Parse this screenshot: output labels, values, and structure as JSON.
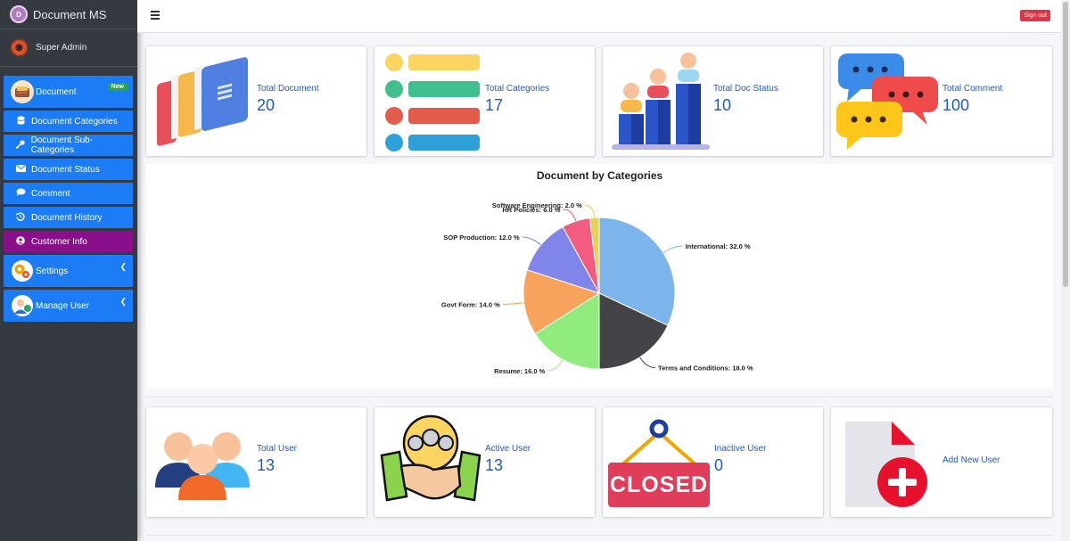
{
  "brand": {
    "title": "Document MS"
  },
  "user": {
    "name": "Super Admin"
  },
  "sidebar": {
    "items": [
      {
        "label": "Document",
        "badge": "New"
      },
      {
        "label": "Document Categories"
      },
      {
        "label": "Document Sub-Categories"
      },
      {
        "label": "Document Status"
      },
      {
        "label": "Comment"
      },
      {
        "label": "Document History"
      },
      {
        "label": "Customer Info"
      },
      {
        "label": "Settings"
      },
      {
        "label": "Manage User"
      }
    ]
  },
  "topbar": {
    "signout_label": "Sign out"
  },
  "stats": [
    {
      "label": "Total Document",
      "value": "20"
    },
    {
      "label": "Total Categories",
      "value": "17"
    },
    {
      "label": "Total Doc Status",
      "value": "10"
    },
    {
      "label": "Total Comment",
      "value": "100"
    }
  ],
  "user_stats": [
    {
      "label": "Total User",
      "value": "13"
    },
    {
      "label": "Active User",
      "value": "13"
    },
    {
      "label": "Inactive User",
      "value": "0"
    },
    {
      "label": "Add New User"
    }
  ],
  "closed_sign": "CLOSED",
  "chart_data": {
    "type": "pie",
    "title": "Document by Categories",
    "slices": [
      {
        "name": "International",
        "value": 32.0,
        "label": "International: 32.0 %",
        "color": "#7cb5ec"
      },
      {
        "name": "Terms and Conditions",
        "value": 18.0,
        "label": "Terms and Conditions: 18.0 %",
        "color": "#434348"
      },
      {
        "name": "Resume",
        "value": 16.0,
        "label": "Resume: 16.0 %",
        "color": "#90ed7d"
      },
      {
        "name": "Govt Form",
        "value": 14.0,
        "label": "Govt Form: 14.0 %",
        "color": "#f7a35c"
      },
      {
        "name": "SOP Production",
        "value": 12.0,
        "label": "SOP Production: 12.0 %",
        "color": "#8085e9"
      },
      {
        "name": "HR Policies",
        "value": 6.0,
        "label": "HR Policies: 6.0 %",
        "color": "#f15c80"
      },
      {
        "name": "Software Engineering",
        "value": 2.0,
        "label": "Software Engineering: 2.0 %",
        "color": "#e4d354"
      }
    ]
  }
}
